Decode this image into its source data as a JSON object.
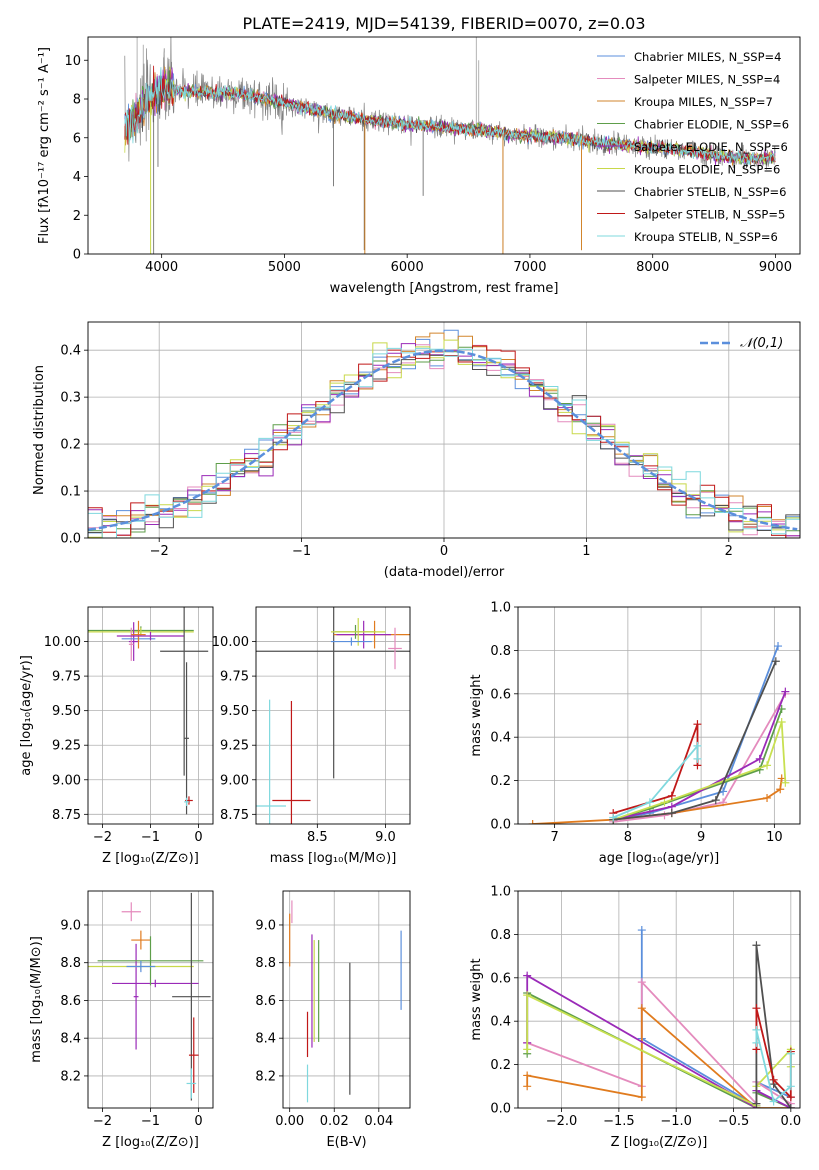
{
  "title": "PLATE=2419, MJD=54139, FIBERID=0070, z=0.03",
  "colors": {
    "chabrier_miles": "#5b8fdc",
    "salpeter_miles": "#e48bbd",
    "kroupa_miles": "#d2852c",
    "chabrier_elodie": "#5e9e4a",
    "salpeter_elodie": "#9a2ab8",
    "kroupa_elodie": "#c8d84a",
    "chabrier_stelib": "#505050",
    "salpeter_stelib": "#c01818",
    "kroupa_stelib": "#7fd8de",
    "data_grey": "#808080",
    "normal_curve": "#5b8fdc",
    "orange_line": "#e07b1e",
    "purple_line": "#9a2ab8",
    "yellow_line": "#c8e050"
  },
  "chart_data": [
    {
      "type": "line",
      "panel": "spectrum",
      "xlabel": "wavelength [Angstrom, rest frame]",
      "ylabel": "Flux [fλ10⁻¹⁷ erg cm⁻² s⁻¹ A⁻¹]",
      "xlim": [
        3400,
        9200
      ],
      "ylim": [
        0,
        11.2
      ],
      "xticks": [
        4000,
        5000,
        6000,
        7000,
        8000,
        9000
      ],
      "yticks": [
        0,
        2,
        4,
        6,
        8,
        10
      ],
      "grid": false,
      "legend_position": "top-right",
      "legend": [
        "Chabrier MILES, N_SSP=4",
        "Salpeter MILES, N_SSP=4",
        "Kroupa MILES, N_SSP=7",
        "Chabrier ELODIE, N_SSP=6",
        "Salpeter ELODIE, N_SSP=6",
        "Kroupa ELODIE, N_SSP=6",
        "Chabrier STELIB, N_SSP=6",
        "Salpeter STELIB, N_SSP=5",
        "Kroupa STELIB, N_SSP=6"
      ],
      "continuum": {
        "x": [
          3700,
          3800,
          3900,
          4000,
          4200,
          4400,
          4600,
          4800,
          5000,
          5200,
          5400,
          5600,
          5800,
          6000,
          6200,
          6400,
          6600,
          6800,
          7000,
          7200,
          7400,
          7600,
          7800,
          8000,
          8200,
          8400,
          8600,
          8800,
          9000
        ],
        "y": [
          6.5,
          7.2,
          8.0,
          8.5,
          8.4,
          8.3,
          8.3,
          8.1,
          7.8,
          7.5,
          7.2,
          7.0,
          6.8,
          6.7,
          6.6,
          6.5,
          6.4,
          6.2,
          6.1,
          6.0,
          5.9,
          5.7,
          5.6,
          5.5,
          5.4,
          5.2,
          5.0,
          4.9,
          5.0
        ]
      },
      "absorption_spikes": [
        {
          "x": 3935,
          "y": 0.0
        },
        {
          "x": 3970,
          "y": 4.5
        },
        {
          "x": 5650,
          "y": 0.2
        },
        {
          "x": 6780,
          "y": 0.2
        },
        {
          "x": 7420,
          "y": 0.2
        },
        {
          "x": 6130,
          "y": 3.0
        },
        {
          "x": 5400,
          "y": 3.5
        }
      ],
      "emission_spikes": [
        {
          "x": 6563,
          "y": 11.2
        },
        {
          "x": 6583,
          "y": 10.0
        },
        {
          "x": 3800,
          "y": 11.2
        },
        {
          "x": 3850,
          "y": 10.8
        },
        {
          "x": 4020,
          "y": 10.4
        }
      ]
    },
    {
      "type": "histogram",
      "panel": "residuals",
      "xlabel": "(data-model)/error",
      "ylabel": "Normed distribution",
      "xlim": [
        -2.5,
        2.5
      ],
      "ylim": [
        0,
        0.46
      ],
      "xticks": [
        -2,
        -1,
        0,
        1,
        2
      ],
      "yticks": [
        0.0,
        0.1,
        0.2,
        0.3,
        0.4
      ],
      "grid": true,
      "legend_position": "top-right",
      "legend": [
        "𝒩(0,1)"
      ],
      "bin_width": 0.1,
      "normal_curve": {
        "mu": 0,
        "sigma": 1
      }
    },
    {
      "type": "errorbar",
      "panel": "age_vs_Z",
      "xlabel": "Z [log₁₀(Z/Z⊙)]",
      "ylabel": "age  [log₁₀(age/yr)]",
      "xlim": [
        -2.3,
        0.3
      ],
      "ylim": [
        8.68,
        10.25
      ],
      "xticks": [
        -2,
        -1,
        0
      ],
      "yticks": [
        8.75,
        9.0,
        9.25,
        9.5,
        9.75,
        10.0
      ],
      "grid": true,
      "points": [
        {
          "c": "chabrier_elodie",
          "x": -1.2,
          "xerr": 1.1,
          "y": 10.08,
          "yerr": 0.03
        },
        {
          "c": "kroupa_elodie",
          "x": -1.2,
          "xerr": 1.1,
          "y": 10.07,
          "yerr": 0.03
        },
        {
          "c": "salpeter_elodie",
          "x": -1.35,
          "xerr": 0.1,
          "y": 10.0,
          "yerr": 0.14
        },
        {
          "c": "salpeter_miles",
          "x": -1.4,
          "xerr": 0.05,
          "y": 9.98,
          "yerr": 0.12
        },
        {
          "c": "chabrier_miles",
          "x": -1.25,
          "xerr": 0.35,
          "y": 10.02,
          "yerr": 0.02
        },
        {
          "c": "orange_line",
          "x": -1.25,
          "xerr": 0.15,
          "y": 10.05,
          "yerr": 0.1
        },
        {
          "c": "purple_line",
          "x": -1.0,
          "xerr": 0.7,
          "y": 10.04,
          "yerr": 0.03
        },
        {
          "c": "chabrier_stelib",
          "x": -0.3,
          "xerr": 0.5,
          "y": 9.93,
          "yerr": 0.9
        },
        {
          "c": "chabrier_stelib",
          "x": -0.25,
          "xerr": 0.05,
          "y": 9.3,
          "yerr": 0.55
        },
        {
          "c": "salpeter_stelib",
          "x": -0.2,
          "xerr": 0.08,
          "y": 8.85,
          "yerr": 0.03
        },
        {
          "c": "kroupa_stelib",
          "x": -0.25,
          "xerr": 0.05,
          "y": 8.84,
          "yerr": 0.03
        }
      ]
    },
    {
      "type": "errorbar",
      "panel": "age_vs_mass",
      "xlabel": "mass [log₁₀(M/M⊙)]",
      "ylabel": "",
      "xlim": [
        8.05,
        9.18
      ],
      "ylim": [
        8.68,
        10.25
      ],
      "xticks": [
        8.5,
        9.0
      ],
      "yticks": [
        8.75,
        9.0,
        9.25,
        9.5,
        9.75,
        10.0
      ],
      "grid": true,
      "points": [
        {
          "c": "chabrier_stelib",
          "x": 8.62,
          "xerr": 0.58,
          "y": 9.93,
          "yerr": 0.92
        },
        {
          "c": "kroupa_stelib",
          "x": 8.15,
          "xerr": 0.12,
          "y": 8.81,
          "yerr": 0.77
        },
        {
          "c": "salpeter_stelib",
          "x": 8.31,
          "xerr": 0.14,
          "y": 8.85,
          "yerr": 0.72
        },
        {
          "c": "orange_line",
          "x": 8.92,
          "xerr": 0.3,
          "y": 10.05,
          "yerr": 0.1
        },
        {
          "c": "purple_line",
          "x": 8.84,
          "xerr": 0.2,
          "y": 10.05,
          "yerr": 0.1
        },
        {
          "c": "salpeter_miles",
          "x": 9.07,
          "xerr": 0.05,
          "y": 9.95,
          "yerr": 0.15
        },
        {
          "c": "chabrier_elodie",
          "x": 8.78,
          "xerr": 0.15,
          "y": 10.07,
          "yerr": 0.05
        },
        {
          "c": "kroupa_elodie",
          "x": 8.8,
          "xerr": 0.2,
          "y": 10.07,
          "yerr": 0.1
        },
        {
          "c": "chabrier_miles",
          "x": 8.75,
          "xerr": 0.15,
          "y": 10.0,
          "yerr": 0.03
        }
      ]
    },
    {
      "type": "line",
      "panel": "mass_weight_vs_age",
      "xlabel": "age  [log₁₀(age/yr)]",
      "ylabel": "mass weight",
      "xlim": [
        6.5,
        10.35
      ],
      "ylim": [
        0,
        1.0
      ],
      "xticks": [
        7,
        8,
        9,
        10
      ],
      "yticks": [
        0.0,
        0.2,
        0.4,
        0.6,
        0.8,
        1.0
      ],
      "grid": true,
      "series": [
        {
          "c": "chabrier_miles",
          "x": [
            7.8,
            8.3,
            9.3,
            10.05
          ],
          "y": [
            0.02,
            0.05,
            0.15,
            0.82
          ]
        },
        {
          "c": "salpeter_miles",
          "x": [
            7.8,
            8.5,
            9.3,
            10.15
          ],
          "y": [
            0.01,
            0.04,
            0.1,
            0.6
          ]
        },
        {
          "c": "orange_line",
          "x": [
            6.7,
            7.8,
            8.6,
            9.9,
            10.08,
            10.1
          ],
          "y": [
            0.0,
            0.02,
            0.05,
            0.12,
            0.16,
            0.21
          ]
        },
        {
          "c": "chabrier_elodie",
          "x": [
            7.8,
            8.3,
            9.8,
            10.1
          ],
          "y": [
            0.02,
            0.07,
            0.25,
            0.53
          ]
        },
        {
          "c": "purple_line",
          "x": [
            7.8,
            8.6,
            9.8,
            10.15
          ],
          "y": [
            0.02,
            0.08,
            0.3,
            0.61
          ]
        },
        {
          "c": "yellow_line",
          "x": [
            7.8,
            8.5,
            9.9,
            10.1,
            10.15
          ],
          "y": [
            0.02,
            0.1,
            0.27,
            0.47,
            0.19
          ]
        },
        {
          "c": "chabrier_stelib",
          "x": [
            7.8,
            8.6,
            9.2,
            10.02
          ],
          "y": [
            0.02,
            0.05,
            0.11,
            0.75
          ]
        },
        {
          "c": "salpeter_stelib",
          "x": [
            7.8,
            8.6,
            8.95,
            8.95
          ],
          "y": [
            0.05,
            0.13,
            0.46,
            0.27
          ]
        },
        {
          "c": "kroupa_stelib",
          "x": [
            7.8,
            8.3,
            8.95,
            8.95
          ],
          "y": [
            0.03,
            0.1,
            0.36,
            0.3
          ]
        }
      ]
    },
    {
      "type": "errorbar",
      "panel": "mass_vs_Z",
      "xlabel": "Z [log₁₀(Z/Z⊙)]",
      "ylabel": "mass [log₁₀(M/M⊙)]",
      "xlim": [
        -2.3,
        0.3
      ],
      "ylim": [
        8.03,
        9.18
      ],
      "xticks": [
        -2,
        -1,
        0
      ],
      "yticks": [
        8.2,
        8.4,
        8.6,
        8.8,
        9.0
      ],
      "grid": true,
      "points": [
        {
          "c": "salpeter_miles",
          "x": -1.4,
          "xerr": 0.2,
          "y": 9.07,
          "yerr": 0.05
        },
        {
          "c": "orange_line",
          "x": -1.2,
          "xerr": 0.2,
          "y": 8.92,
          "yerr": 0.05
        },
        {
          "c": "purple_line",
          "x": -1.3,
          "xerr": 0.05,
          "y": 8.62,
          "yerr": 0.28
        },
        {
          "c": "purple_line",
          "x": -0.9,
          "xerr": 0.9,
          "y": 8.69,
          "yerr": 0.02
        },
        {
          "c": "chabrier_elodie",
          "x": -1.0,
          "xerr": 1.1,
          "y": 8.81,
          "yerr": 0.13
        },
        {
          "c": "kroupa_elodie",
          "x": -1.2,
          "xerr": 1.1,
          "y": 8.78,
          "yerr": 0.02
        },
        {
          "c": "chabrier_miles",
          "x": -1.2,
          "xerr": 0.3,
          "y": 8.78,
          "yerr": 0.03
        },
        {
          "c": "chabrier_stelib",
          "x": -0.15,
          "xerr": 0.4,
          "y": 8.62,
          "yerr": 0.55
        },
        {
          "c": "salpeter_stelib",
          "x": -0.1,
          "xerr": 0.1,
          "y": 8.31,
          "yerr": 0.2
        },
        {
          "c": "kroupa_stelib",
          "x": -0.15,
          "xerr": 0.1,
          "y": 8.16,
          "yerr": 0.08
        }
      ]
    },
    {
      "type": "errorbar",
      "panel": "mass_vs_EBV",
      "xlabel": "E(B-V)",
      "ylabel": "",
      "xlim": [
        -0.003,
        0.054
      ],
      "ylim": [
        8.03,
        9.18
      ],
      "xticks": [
        0.0,
        0.02,
        0.04
      ],
      "yticks": [
        8.2,
        8.4,
        8.6,
        8.8,
        9.0
      ],
      "grid": true,
      "points": [
        {
          "c": "orange_line",
          "x": 0.0,
          "xerr": 0.0,
          "y": 8.92,
          "yerr": 0.14
        },
        {
          "c": "salpeter_miles",
          "x": 0.001,
          "xerr": 0.0,
          "y": 9.07,
          "yerr": 0.06
        },
        {
          "c": "salpeter_stelib",
          "x": 0.008,
          "xerr": 0.0,
          "y": 8.42,
          "yerr": 0.12
        },
        {
          "c": "kroupa_stelib",
          "x": 0.008,
          "xerr": 0.0,
          "y": 8.16,
          "yerr": 0.1
        },
        {
          "c": "purple_line",
          "x": 0.01,
          "xerr": 0.0,
          "y": 8.65,
          "yerr": 0.3
        },
        {
          "c": "kroupa_elodie",
          "x": 0.011,
          "xerr": 0.0,
          "y": 8.65,
          "yerr": 0.27
        },
        {
          "c": "chabrier_elodie",
          "x": 0.013,
          "xerr": 0.0,
          "y": 8.65,
          "yerr": 0.27
        },
        {
          "c": "chabrier_stelib",
          "x": 0.027,
          "xerr": 0.0,
          "y": 8.45,
          "yerr": 0.35
        },
        {
          "c": "chabrier_miles",
          "x": 0.05,
          "xerr": 0.0,
          "y": 8.76,
          "yerr": 0.21
        }
      ]
    },
    {
      "type": "line",
      "panel": "mass_weight_vs_Z",
      "xlabel": "Z [log₁₀(Z/Z⊙)]",
      "ylabel": "mass weight",
      "xlim": [
        -2.38,
        0.08
      ],
      "ylim": [
        0,
        1.0
      ],
      "xticks": [
        -2.0,
        -1.5,
        -1.0,
        -0.5,
        0.0
      ],
      "yticks": [
        0.0,
        0.2,
        0.4,
        0.6,
        0.8,
        1.0
      ],
      "grid": true,
      "series": [
        {
          "c": "chabrier_miles",
          "x": [
            -1.3,
            -1.3,
            -0.3,
            -0.3,
            0.0
          ],
          "y": [
            0.82,
            0.32,
            0.01,
            0.12,
            0.05
          ]
        },
        {
          "c": "salpeter_miles",
          "x": [
            -2.3,
            -1.3,
            -1.3,
            -0.3,
            -0.3,
            0.0
          ],
          "y": [
            0.3,
            0.1,
            0.58,
            0.02,
            0.12,
            0.02
          ]
        },
        {
          "c": "orange_line",
          "x": [
            -2.3,
            -2.3,
            -1.3,
            -1.3,
            -0.3,
            0.0
          ],
          "y": [
            0.1,
            0.15,
            0.05,
            0.46,
            0.0,
            0.0
          ]
        },
        {
          "c": "chabrier_elodie",
          "x": [
            -2.3,
            -2.3,
            -0.3,
            -0.3,
            0.0
          ],
          "y": [
            0.25,
            0.53,
            0.0,
            0.07,
            0.0
          ]
        },
        {
          "c": "purple_line",
          "x": [
            -2.3,
            -2.3,
            -0.3,
            -0.3,
            0.0
          ],
          "y": [
            0.3,
            0.61,
            0.0,
            0.08,
            0.0
          ]
        },
        {
          "c": "yellow_line",
          "x": [
            -2.3,
            -2.3,
            -0.3,
            -0.3,
            0.0,
            0.0
          ],
          "y": [
            0.27,
            0.52,
            0.01,
            0.1,
            0.27,
            0.19
          ]
        },
        {
          "c": "chabrier_stelib",
          "x": [
            -0.3,
            -0.3,
            -0.15,
            0.0
          ],
          "y": [
            0.02,
            0.75,
            0.11,
            0.0
          ]
        },
        {
          "c": "salpeter_stelib",
          "x": [
            -0.3,
            -0.3,
            -0.15,
            0.0,
            0.0
          ],
          "y": [
            0.27,
            0.46,
            0.13,
            0.05,
            0.26
          ]
        },
        {
          "c": "kroupa_stelib",
          "x": [
            -0.3,
            -0.3,
            -0.15,
            0.0,
            0.0
          ],
          "y": [
            0.3,
            0.36,
            0.03,
            0.1,
            0.25
          ]
        }
      ]
    }
  ]
}
